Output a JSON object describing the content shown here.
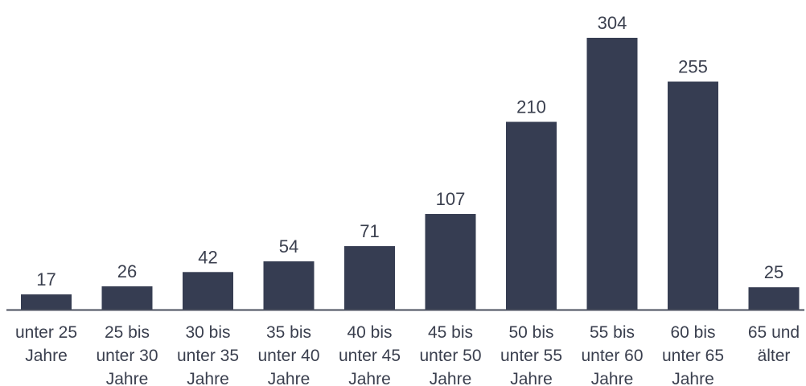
{
  "colors": {
    "bar": "#363d52",
    "axis": "#4a4f5e",
    "text": "#3a3f4e",
    "background": "#ffffff"
  },
  "chart_data": {
    "type": "bar",
    "title": "",
    "xlabel": "",
    "ylabel": "",
    "categories": [
      [
        "unter 25",
        "Jahre"
      ],
      [
        "25 bis",
        "unter 30",
        "Jahre"
      ],
      [
        "30 bis",
        "unter 35",
        "Jahre"
      ],
      [
        "35 bis",
        "unter 40",
        "Jahre"
      ],
      [
        "40 bis",
        "unter 45",
        "Jahre"
      ],
      [
        "45 bis",
        "unter 50",
        "Jahre"
      ],
      [
        "50 bis",
        "unter 55",
        "Jahre"
      ],
      [
        "55 bis",
        "unter 60",
        "Jahre"
      ],
      [
        "60 bis",
        "unter 65",
        "Jahre"
      ],
      [
        "65 und",
        "älter"
      ]
    ],
    "values": [
      17,
      26,
      42,
      54,
      71,
      107,
      210,
      304,
      255,
      25
    ],
    "data_labels": [
      "17",
      "26",
      "42",
      "54",
      "71",
      "107",
      "210",
      "304",
      "255",
      "25"
    ],
    "ylim": [
      0,
      304
    ],
    "grid": false,
    "legend": "none"
  }
}
